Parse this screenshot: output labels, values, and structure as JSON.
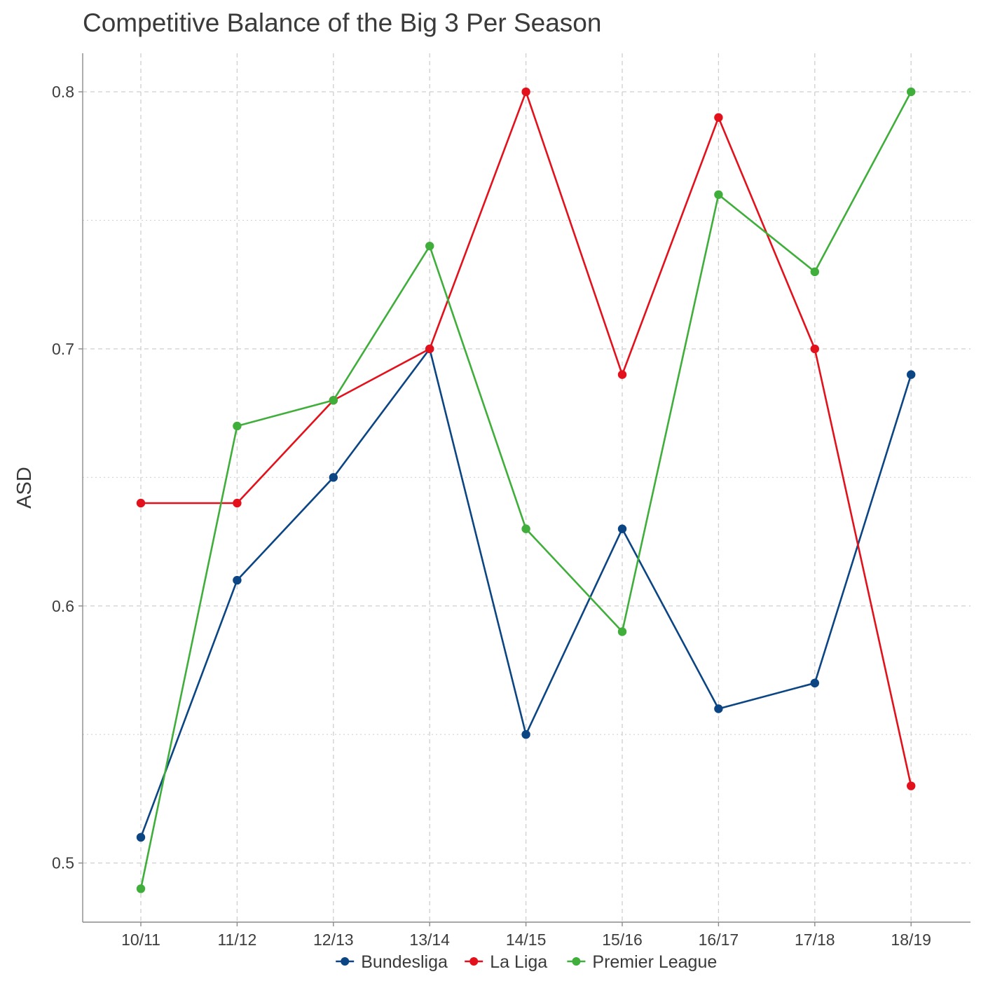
{
  "chart_data": {
    "type": "line",
    "title": "Competitive Balance of the Big 3 Per Season",
    "xlabel": "",
    "ylabel": "ASD",
    "categories": [
      "10/11",
      "11/12",
      "12/13",
      "13/14",
      "14/15",
      "15/16",
      "16/17",
      "17/18",
      "18/19"
    ],
    "ylim": [
      0.477,
      0.815
    ],
    "yticks": [
      0.5,
      0.6,
      0.7,
      0.8
    ],
    "yticks_minor": [
      0.55,
      0.65,
      0.75
    ],
    "grid": true,
    "legend_position": "bottom",
    "series": [
      {
        "name": "Bundesliga",
        "color": "#0b4584",
        "values": [
          0.51,
          0.61,
          0.65,
          0.7,
          0.55,
          0.63,
          0.56,
          0.57,
          0.69
        ]
      },
      {
        "name": "La Liga",
        "color": "#e3111b",
        "values": [
          0.64,
          0.64,
          0.68,
          0.7,
          0.8,
          0.69,
          0.79,
          0.7,
          0.53
        ]
      },
      {
        "name": "Premier League",
        "color": "#3fae3a",
        "values": [
          0.49,
          0.67,
          0.68,
          0.74,
          0.63,
          0.59,
          0.76,
          0.73,
          0.8
        ]
      }
    ]
  }
}
